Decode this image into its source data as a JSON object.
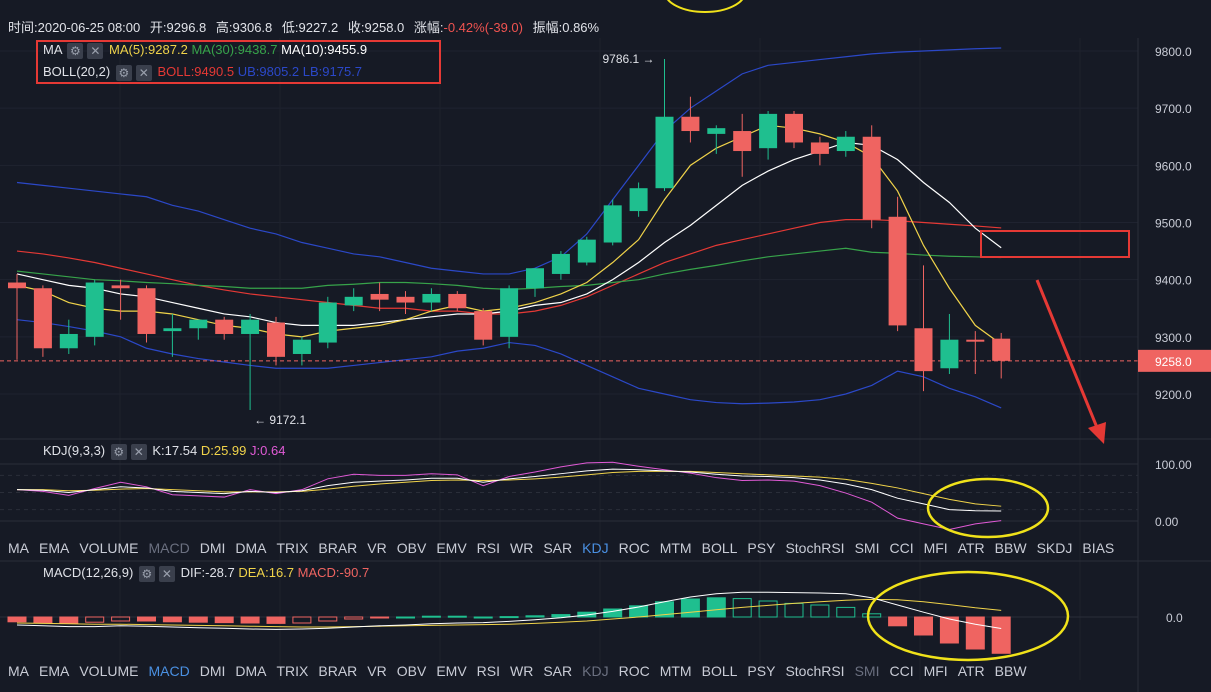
{
  "header": {
    "time_label": "时间:2020-06-25 08:00",
    "open_label": "开:9296.8",
    "high_label": "高:9306.8",
    "low_label": "低:9227.2",
    "close_label": "收:9258.0",
    "change_prefix": "涨幅:",
    "change_value": "-0.42%(-39.0)",
    "amplitude_label": "振幅:0.86%"
  },
  "overlays": {
    "ma_name": "MA",
    "ma5": "MA(5):9287.2",
    "ma30": "MA(30):9438.7",
    "ma10": "MA(10):9455.9",
    "boll_name": "BOLL(20,2)",
    "boll_mid": "BOLL:9490.5",
    "boll_ub": "UB:9805.2",
    "boll_lb": "LB:9175.7"
  },
  "kdj": {
    "name": "KDJ(9,3,3)",
    "k": "K:17.54",
    "d": "D:25.99",
    "j": "J:0.64"
  },
  "macd": {
    "name": "MACD(12,26,9)",
    "dif": "DIF:-28.7",
    "dea": "DEA:16.7",
    "macd": "MACD:-90.7"
  },
  "price_axis": {
    "ticks": [
      "9800.0",
      "9700.0",
      "9600.0",
      "9500.0",
      "9400.0",
      "9300.0",
      "9200.0"
    ],
    "current": "9258.0"
  },
  "kdj_axis": {
    "ticks": [
      "100.00",
      "0.00"
    ]
  },
  "macd_axis": {
    "ticks": [
      "0.0"
    ]
  },
  "annotations": {
    "high": "9786.1",
    "low": "9172.1"
  },
  "tabs_top": [
    "MA",
    "EMA",
    "VOLUME",
    "MACD",
    "DMI",
    "DMA",
    "TRIX",
    "BRAR",
    "VR",
    "OBV",
    "EMV",
    "RSI",
    "WR",
    "SAR",
    "KDJ",
    "ROC",
    "MTM",
    "BOLL",
    "PSY",
    "StochRSI",
    "SMI",
    "CCI",
    "MFI",
    "ATR",
    "BBW",
    "SKDJ",
    "BIAS"
  ],
  "tabs_top_active": "KDJ",
  "tabs_top_dim": [
    "MACD"
  ],
  "tabs_bottom": [
    "MA",
    "EMA",
    "VOLUME",
    "MACD",
    "DMI",
    "DMA",
    "TRIX",
    "BRAR",
    "VR",
    "OBV",
    "EMV",
    "RSI",
    "WR",
    "SAR",
    "KDJ",
    "ROC",
    "MTM",
    "BOLL",
    "PSY",
    "StochRSI",
    "SMI",
    "CCI",
    "MFI",
    "ATR",
    "BBW"
  ],
  "tabs_bottom_active": "MACD",
  "tabs_bottom_dim": [
    "KDJ",
    "SMI"
  ],
  "colors": {
    "up": "#26a69a",
    "up_fill": "#1fbf8f",
    "down": "#ef6461",
    "ma5": "#f0d34a",
    "ma10": "#ffffff",
    "ma30": "#37a34a",
    "boll_mid": "#e53935",
    "boll_band": "#2b48c8",
    "kdj_k": "#ffffff",
    "kdj_d": "#f0d34a",
    "kdj_j": "#e05ad6",
    "highlight_box": "#e53935",
    "circle": "#f0e21a"
  },
  "chart_data": {
    "type": "candlestick",
    "ylim": [
      9150,
      9830
    ],
    "candles": [
      {
        "o": 9395,
        "h": 9410,
        "l": 9260,
        "c": 9385
      },
      {
        "o": 9385,
        "h": 9390,
        "l": 9265,
        "c": 9280
      },
      {
        "o": 9280,
        "h": 9330,
        "l": 9270,
        "c": 9305
      },
      {
        "o": 9300,
        "h": 9400,
        "l": 9285,
        "c": 9395
      },
      {
        "o": 9390,
        "h": 9400,
        "l": 9330,
        "c": 9385
      },
      {
        "o": 9385,
        "h": 9390,
        "l": 9290,
        "c": 9305
      },
      {
        "o": 9310,
        "h": 9340,
        "l": 9265,
        "c": 9315
      },
      {
        "o": 9315,
        "h": 9330,
        "l": 9295,
        "c": 9330
      },
      {
        "o": 9330,
        "h": 9335,
        "l": 9295,
        "c": 9305
      },
      {
        "o": 9305,
        "h": 9340,
        "l": 9172,
        "c": 9330
      },
      {
        "o": 9325,
        "h": 9335,
        "l": 9250,
        "c": 9265
      },
      {
        "o": 9270,
        "h": 9300,
        "l": 9250,
        "c": 9295
      },
      {
        "o": 9290,
        "h": 9370,
        "l": 9280,
        "c": 9360
      },
      {
        "o": 9355,
        "h": 9385,
        "l": 9345,
        "c": 9370
      },
      {
        "o": 9375,
        "h": 9395,
        "l": 9345,
        "c": 9365
      },
      {
        "o": 9370,
        "h": 9380,
        "l": 9340,
        "c": 9360
      },
      {
        "o": 9360,
        "h": 9385,
        "l": 9345,
        "c": 9375
      },
      {
        "o": 9375,
        "h": 9380,
        "l": 9345,
        "c": 9350
      },
      {
        "o": 9345,
        "h": 9350,
        "l": 9285,
        "c": 9295
      },
      {
        "o": 9300,
        "h": 9390,
        "l": 9280,
        "c": 9385
      },
      {
        "o": 9385,
        "h": 9420,
        "l": 9370,
        "c": 9420
      },
      {
        "o": 9410,
        "h": 9450,
        "l": 9400,
        "c": 9445
      },
      {
        "o": 9430,
        "h": 9475,
        "l": 9425,
        "c": 9470
      },
      {
        "o": 9465,
        "h": 9540,
        "l": 9460,
        "c": 9530
      },
      {
        "o": 9520,
        "h": 9570,
        "l": 9510,
        "c": 9560
      },
      {
        "o": 9560,
        "h": 9786.1,
        "l": 9555,
        "c": 9685
      },
      {
        "o": 9685,
        "h": 9720,
        "l": 9640,
        "c": 9660
      },
      {
        "o": 9655,
        "h": 9670,
        "l": 9620,
        "c": 9665
      },
      {
        "o": 9660,
        "h": 9690,
        "l": 9580,
        "c": 9625
      },
      {
        "o": 9630,
        "h": 9695,
        "l": 9610,
        "c": 9690
      },
      {
        "o": 9690,
        "h": 9695,
        "l": 9630,
        "c": 9640
      },
      {
        "o": 9640,
        "h": 9650,
        "l": 9600,
        "c": 9620
      },
      {
        "o": 9625,
        "h": 9660,
        "l": 9615,
        "c": 9650
      },
      {
        "o": 9650,
        "h": 9670,
        "l": 9490,
        "c": 9505
      },
      {
        "o": 9510,
        "h": 9545,
        "l": 9310,
        "c": 9320
      },
      {
        "o": 9315,
        "h": 9425,
        "l": 9205,
        "c": 9240
      },
      {
        "o": 9245,
        "h": 9340,
        "l": 9235,
        "c": 9295
      },
      {
        "o": 9295,
        "h": 9310,
        "l": 9235,
        "c": 9292
      },
      {
        "o": 9296.8,
        "h": 9306.8,
        "l": 9227.2,
        "c": 9258
      }
    ],
    "ma5": [
      9390,
      9380,
      9360,
      9350,
      9345,
      9345,
      9340,
      9330,
      9320,
      9315,
      9305,
      9300,
      9310,
      9315,
      9320,
      9330,
      9345,
      9355,
      9345,
      9350,
      9360,
      9375,
      9395,
      9430,
      9470,
      9540,
      9600,
      9630,
      9650,
      9670,
      9665,
      9655,
      9640,
      9615,
      9555,
      9460,
      9385,
      9320,
      9287
    ],
    "ma10": [
      9410,
      9400,
      9390,
      9385,
      9375,
      9370,
      9360,
      9350,
      9340,
      9335,
      9325,
      9320,
      9320,
      9320,
      9325,
      9330,
      9335,
      9340,
      9340,
      9345,
      9355,
      9360,
      9375,
      9400,
      9430,
      9465,
      9495,
      9530,
      9565,
      9590,
      9610,
      9625,
      9640,
      9635,
      9610,
      9570,
      9535,
      9490,
      9455.9
    ],
    "ma30": [
      9415,
      9410,
      9405,
      9400,
      9398,
      9395,
      9393,
      9390,
      9388,
      9385,
      9385,
      9385,
      9390,
      9392,
      9395,
      9395,
      9393,
      9390,
      9385,
      9383,
      9385,
      9388,
      9390,
      9395,
      9400,
      9410,
      9418,
      9425,
      9433,
      9440,
      9445,
      9450,
      9455,
      9448,
      9446,
      9443,
      9441,
      9440,
      9438.7
    ],
    "boll_mid": [
      9450,
      9445,
      9438,
      9430,
      9420,
      9410,
      9400,
      9390,
      9382,
      9375,
      9370,
      9365,
      9360,
      9355,
      9350,
      9350,
      9345,
      9345,
      9340,
      9340,
      9345,
      9355,
      9370,
      9390,
      9410,
      9430,
      9445,
      9460,
      9470,
      9480,
      9490,
      9500,
      9505,
      9505,
      9503,
      9500,
      9497,
      9494,
      9490.5
    ],
    "boll_ub": [
      9570,
      9565,
      9560,
      9555,
      9550,
      9545,
      9530,
      9520,
      9505,
      9490,
      9480,
      9465,
      9455,
      9445,
      9440,
      9430,
      9420,
      9415,
      9410,
      9410,
      9420,
      9440,
      9480,
      9540,
      9600,
      9660,
      9700,
      9730,
      9760,
      9775,
      9780,
      9785,
      9790,
      9795,
      9798,
      9800,
      9802,
      9804,
      9805.2
    ],
    "boll_lb": [
      9330,
      9325,
      9318,
      9310,
      9300,
      9280,
      9270,
      9262,
      9256,
      9250,
      9245,
      9245,
      9245,
      9250,
      9255,
      9260,
      9265,
      9275,
      9280,
      9290,
      9285,
      9270,
      9250,
      9230,
      9210,
      9200,
      9190,
      9185,
      9183,
      9184,
      9186,
      9190,
      9200,
      9215,
      9240,
      9230,
      9210,
      9195,
      9175.7
    ],
    "kdj_k": [
      55,
      54,
      50,
      55,
      60,
      58,
      52,
      50,
      48,
      52,
      50,
      53,
      62,
      68,
      70,
      72,
      75,
      75,
      68,
      74,
      78,
      83,
      88,
      91,
      90,
      88,
      86,
      82,
      79,
      78,
      76,
      72,
      65,
      55,
      40,
      30,
      20,
      18,
      17.54
    ],
    "kdj_d": [
      55,
      55,
      53,
      54,
      56,
      57,
      55,
      53,
      51,
      51,
      51,
      52,
      56,
      61,
      65,
      68,
      71,
      72,
      71,
      72,
      74,
      77,
      81,
      85,
      87,
      87,
      87,
      85,
      83,
      81,
      79,
      77,
      73,
      66,
      58,
      48,
      38,
      30,
      25.99
    ],
    "kdj_j": [
      55,
      52,
      45,
      57,
      68,
      60,
      46,
      44,
      42,
      55,
      48,
      55,
      74,
      82,
      80,
      80,
      83,
      81,
      62,
      78,
      86,
      95,
      102,
      103,
      96,
      90,
      84,
      76,
      71,
      72,
      70,
      62,
      49,
      33,
      5,
      -5,
      -15,
      -5,
      0.64
    ],
    "macd_hist": [
      -12,
      -14,
      -15,
      -13,
      -10,
      -10,
      -12,
      -13,
      -14,
      -15,
      -16,
      -15,
      -10,
      -5,
      -2,
      0,
      2,
      2,
      0,
      1,
      3,
      6,
      12,
      20,
      28,
      38,
      45,
      48,
      46,
      40,
      34,
      30,
      24,
      8,
      -22,
      -45,
      -65,
      -80,
      -90.7
    ],
    "macd_dif": [
      -20,
      -22,
      -24,
      -24,
      -22,
      -23,
      -25,
      -27,
      -28,
      -30,
      -31,
      -30,
      -28,
      -25,
      -22,
      -20,
      -17,
      -15,
      -14,
      -11,
      -7,
      -2,
      5,
      14,
      25,
      38,
      50,
      58,
      62,
      62,
      61,
      60,
      58,
      48,
      30,
      12,
      -5,
      -18,
      -28.7
    ],
    "macd_dea": [
      -15,
      -16,
      -17,
      -18,
      -18,
      -19,
      -20,
      -21,
      -22,
      -23,
      -24,
      -25,
      -25,
      -24,
      -23,
      -22,
      -21,
      -20,
      -19,
      -18,
      -16,
      -13,
      -10,
      -5,
      0,
      6,
      12,
      18,
      24,
      29,
      34,
      38,
      42,
      44,
      43,
      38,
      31,
      23,
      16.7
    ]
  }
}
